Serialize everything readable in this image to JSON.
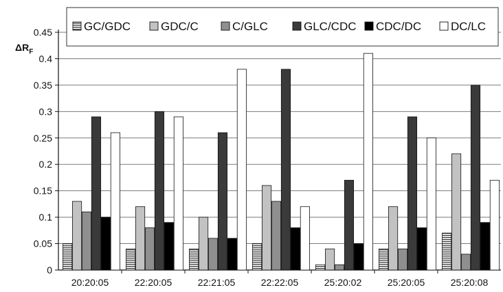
{
  "chart_data": {
    "type": "bar",
    "ylabel": "ΔR",
    "ylabel_subscript": "F",
    "ylim": [
      0,
      0.45
    ],
    "yticks": [
      "0",
      "0.05",
      "0.1",
      "0.15",
      "0.2",
      "0.25",
      "0.3",
      "0.35",
      "0.4",
      "0.45"
    ],
    "grid": true,
    "legend_position": "top",
    "categories": [
      "20:20:05",
      "22:20:05",
      "22:21:05",
      "22:22:05",
      "25:20:02",
      "25:20:05",
      "25:20:08"
    ],
    "series": [
      {
        "name": "GC/GDC",
        "fill": "#e6e6e6",
        "pattern": "horizontal-stripes",
        "values": [
          0.05,
          0.04,
          0.04,
          0.05,
          0.01,
          0.04,
          0.07
        ]
      },
      {
        "name": "GDC/C",
        "fill": "#c2c2c2",
        "pattern": "solid",
        "values": [
          0.13,
          0.12,
          0.1,
          0.16,
          0.04,
          0.12,
          0.22
        ]
      },
      {
        "name": "C/GLC",
        "fill": "#8f8f8f",
        "pattern": "solid",
        "values": [
          0.11,
          0.08,
          0.06,
          0.13,
          0.01,
          0.04,
          0.03
        ]
      },
      {
        "name": "GLC/CDC",
        "fill": "#3a3a3a",
        "pattern": "solid",
        "values": [
          0.29,
          0.3,
          0.26,
          0.38,
          0.17,
          0.29,
          0.35
        ]
      },
      {
        "name": "CDC/DC",
        "fill": "#000000",
        "pattern": "solid",
        "values": [
          0.1,
          0.09,
          0.06,
          0.08,
          0.05,
          0.08,
          0.09
        ]
      },
      {
        "name": "DC/LC",
        "fill": "#ffffff",
        "pattern": "solid",
        "values": [
          0.26,
          0.29,
          0.38,
          0.12,
          0.41,
          0.25,
          0.17
        ]
      }
    ]
  }
}
